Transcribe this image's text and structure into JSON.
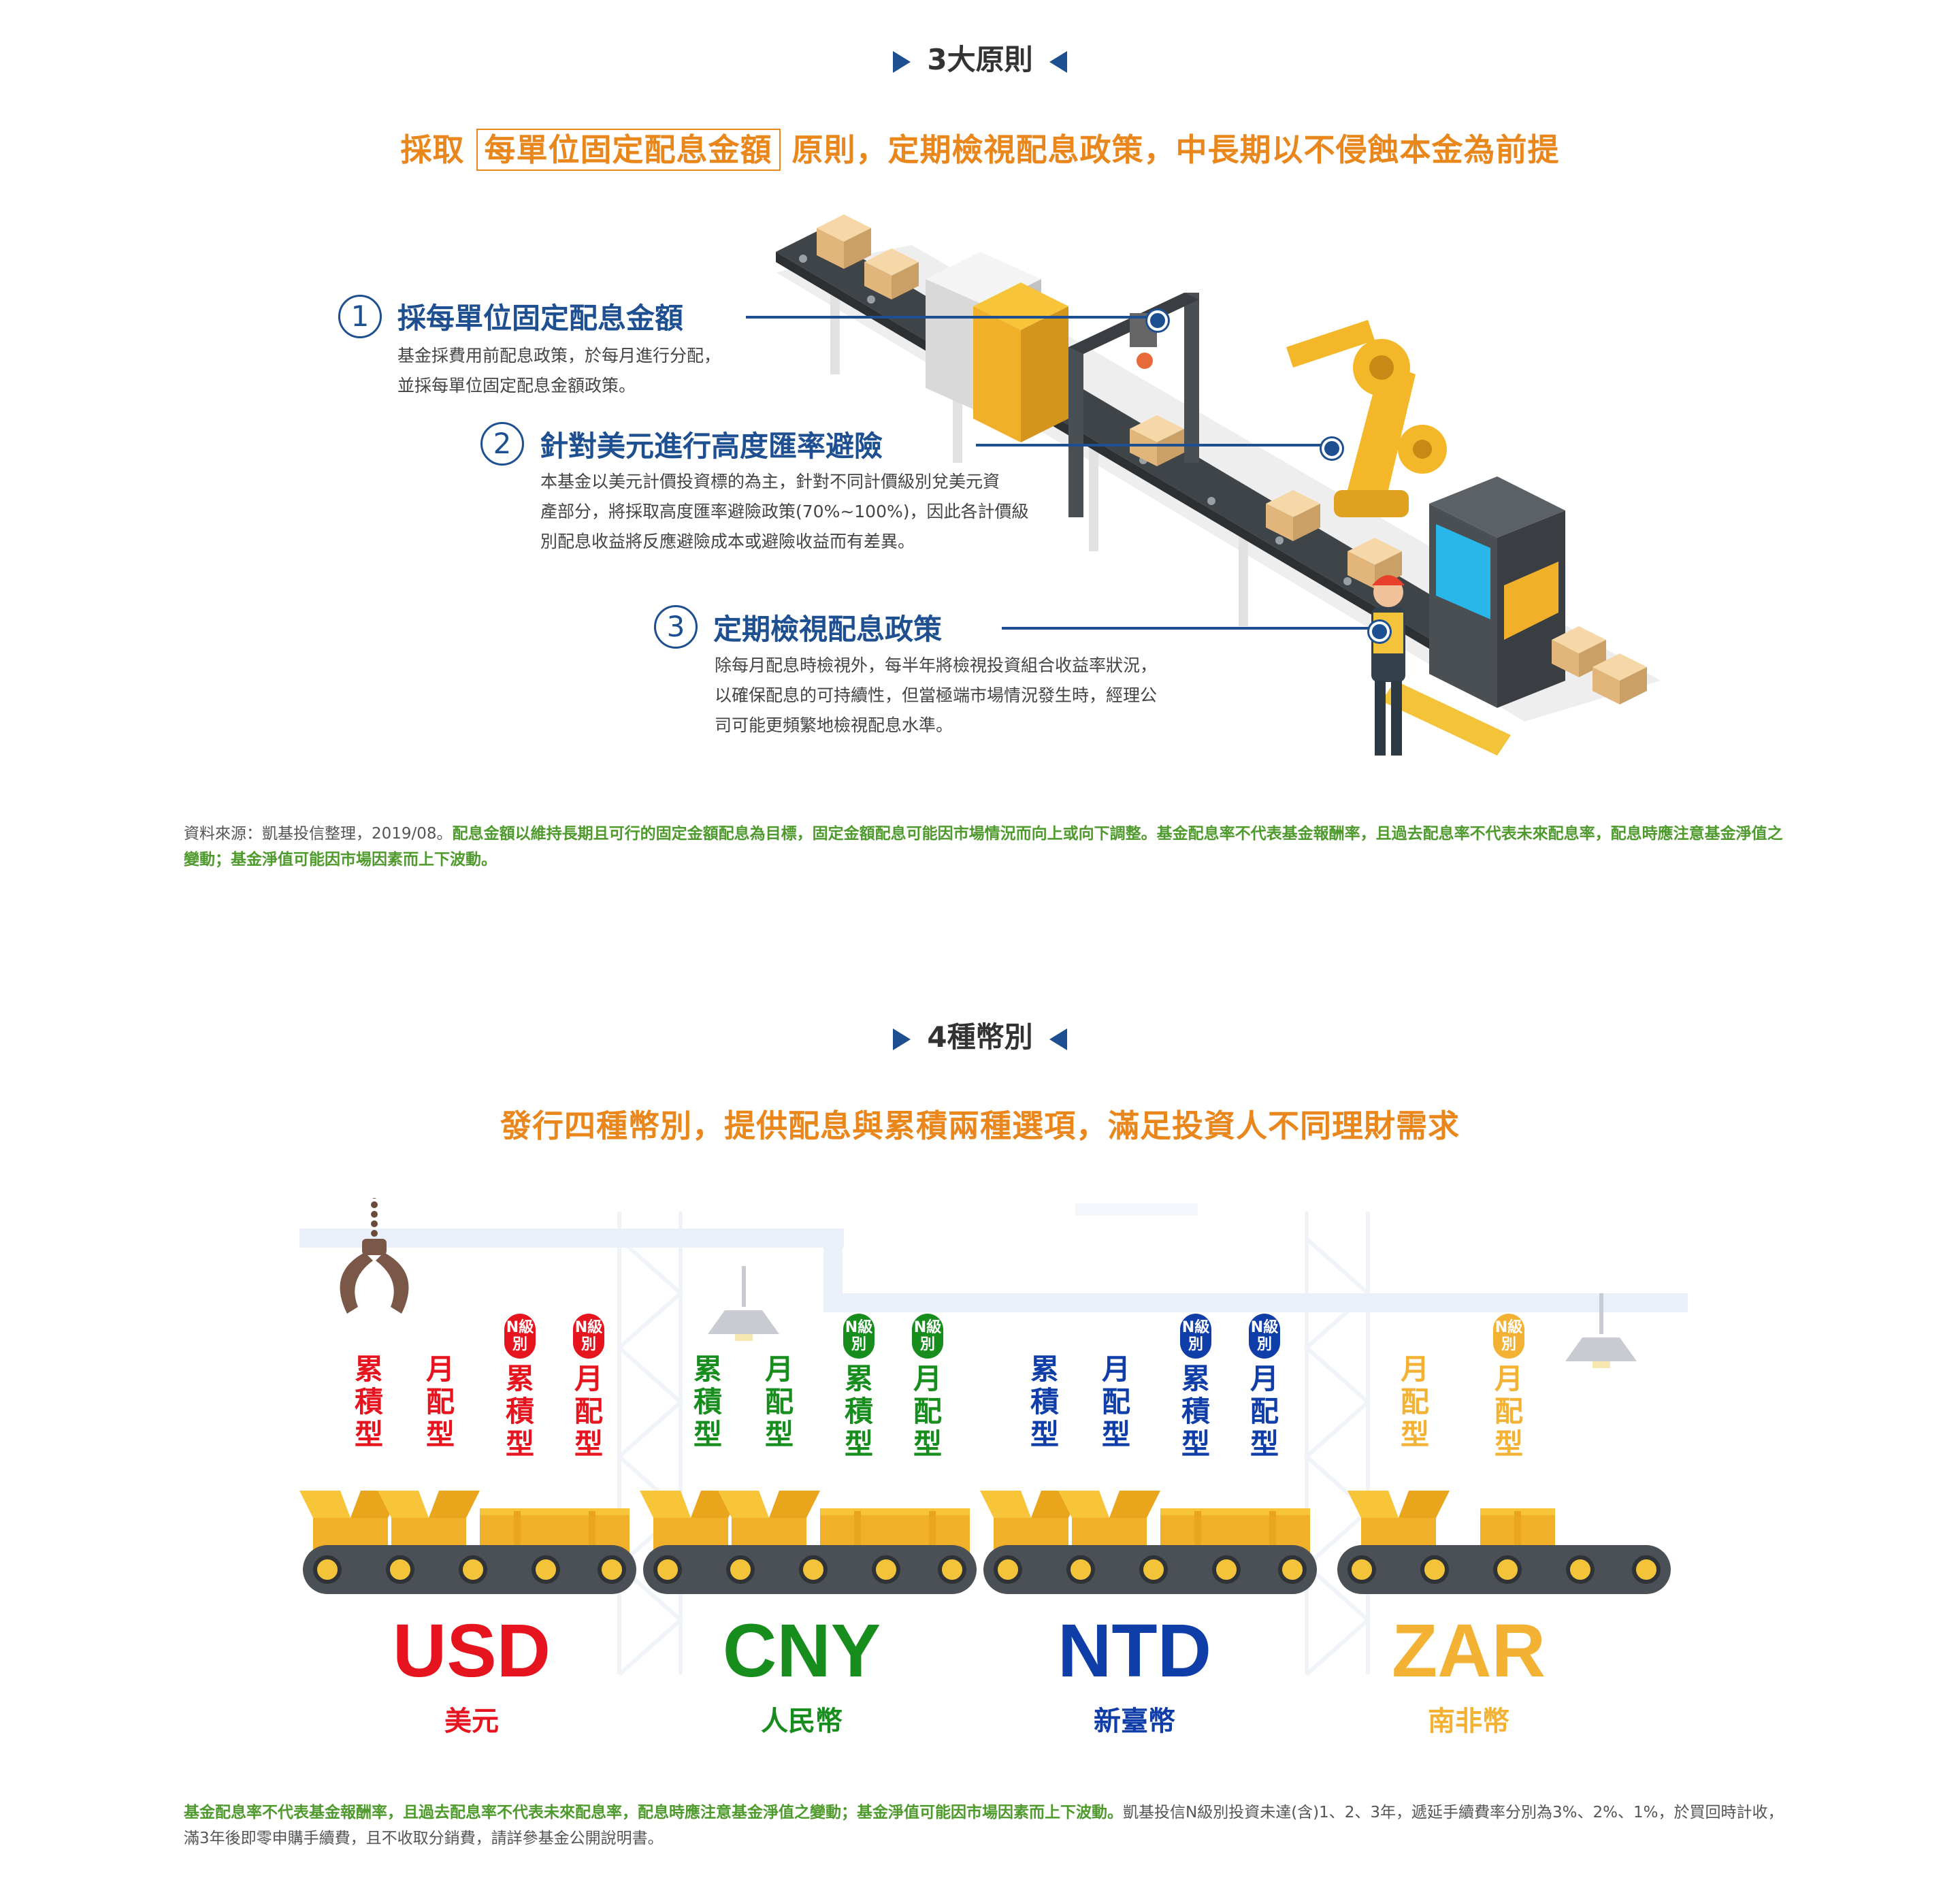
{
  "colors": {
    "navy": "#1d4f91",
    "orange": "#e9861c",
    "green_note": "#4e9a2c",
    "usd": "#e6141f",
    "cny": "#178d1e",
    "ntd": "#0f3ea8",
    "zar": "#f3b233"
  },
  "section1": {
    "title": "3大原則",
    "headline_pre": "採取",
    "headline_box": "每單位固定配息金額",
    "headline_post": "原則，定期檢視配息政策，中長期以不侵蝕本金為前提",
    "principles": [
      {
        "num": "1",
        "title": "採每單位固定配息金額",
        "desc": [
          "基金採費用前配息政策，於每月進行分配，",
          "並採每單位固定配息金額政策。"
        ]
      },
      {
        "num": "2",
        "title": "針對美元進行高度匯率避險",
        "desc": [
          "本基金以美元計價投資標的為主，針對不同計價級別兌美元資",
          "產部分，將採取高度匯率避險政策(70%~100%)，因此各計價級",
          "別配息收益將反應避險成本或避險收益而有差異。"
        ]
      },
      {
        "num": "3",
        "title": "定期檢視配息政策",
        "desc": [
          "除每月配息時檢視外，每半年將檢視投資組合收益率狀況，",
          "以確保配息的可持續性，但當極端市場情況發生時，經理公",
          "司可能更頻繁地檢視配息水準。"
        ]
      }
    ],
    "note_source": "資料來源：凱基投信整理，2019/08。",
    "note_green": "配息金額以維持長期且可行的固定金額配息為目標，固定金額配息可能因市場情況而向上或向下調整。基金配息率不代表基金報酬率，且過去配息率不代表未來配息率，配息時應注意基金淨值之變動；基金淨值可能因市場因素而上下波動。"
  },
  "section2": {
    "title": "4種幣別",
    "headline": "發行四種幣別，提供配息與累積兩種選項，滿足投資人不同理財需求",
    "n_pill": "N級別",
    "currencies": [
      {
        "code": "USD",
        "name": "美元",
        "labels": [
          "累積型",
          "月配型",
          "累積型",
          "月配型"
        ],
        "n_flags": [
          false,
          false,
          true,
          true
        ]
      },
      {
        "code": "CNY",
        "name": "人民幣",
        "labels": [
          "累積型",
          "月配型",
          "累積型",
          "月配型"
        ],
        "n_flags": [
          false,
          false,
          true,
          true
        ]
      },
      {
        "code": "NTD",
        "name": "新臺幣",
        "labels": [
          "累積型",
          "月配型",
          "累積型",
          "月配型"
        ],
        "n_flags": [
          false,
          false,
          true,
          true
        ]
      },
      {
        "code": "ZAR",
        "name": "南非幣",
        "labels": [
          "月配型",
          "月配型"
        ],
        "n_flags": [
          false,
          true
        ]
      }
    ],
    "note_green": "基金配息率不代表基金報酬率，且過去配息率不代表未來配息率，配息時應注意基金淨值之變動；基金淨值可能因市場因素而上下波動。",
    "note_rest": "凱基投信N級別投資未達(含)1、2、3年，遞延手續費率分別為3%、2%、1%，於買回時計收，滿3年後即零申購手續費，且不收取分銷費，請詳參基金公開說明書。"
  }
}
